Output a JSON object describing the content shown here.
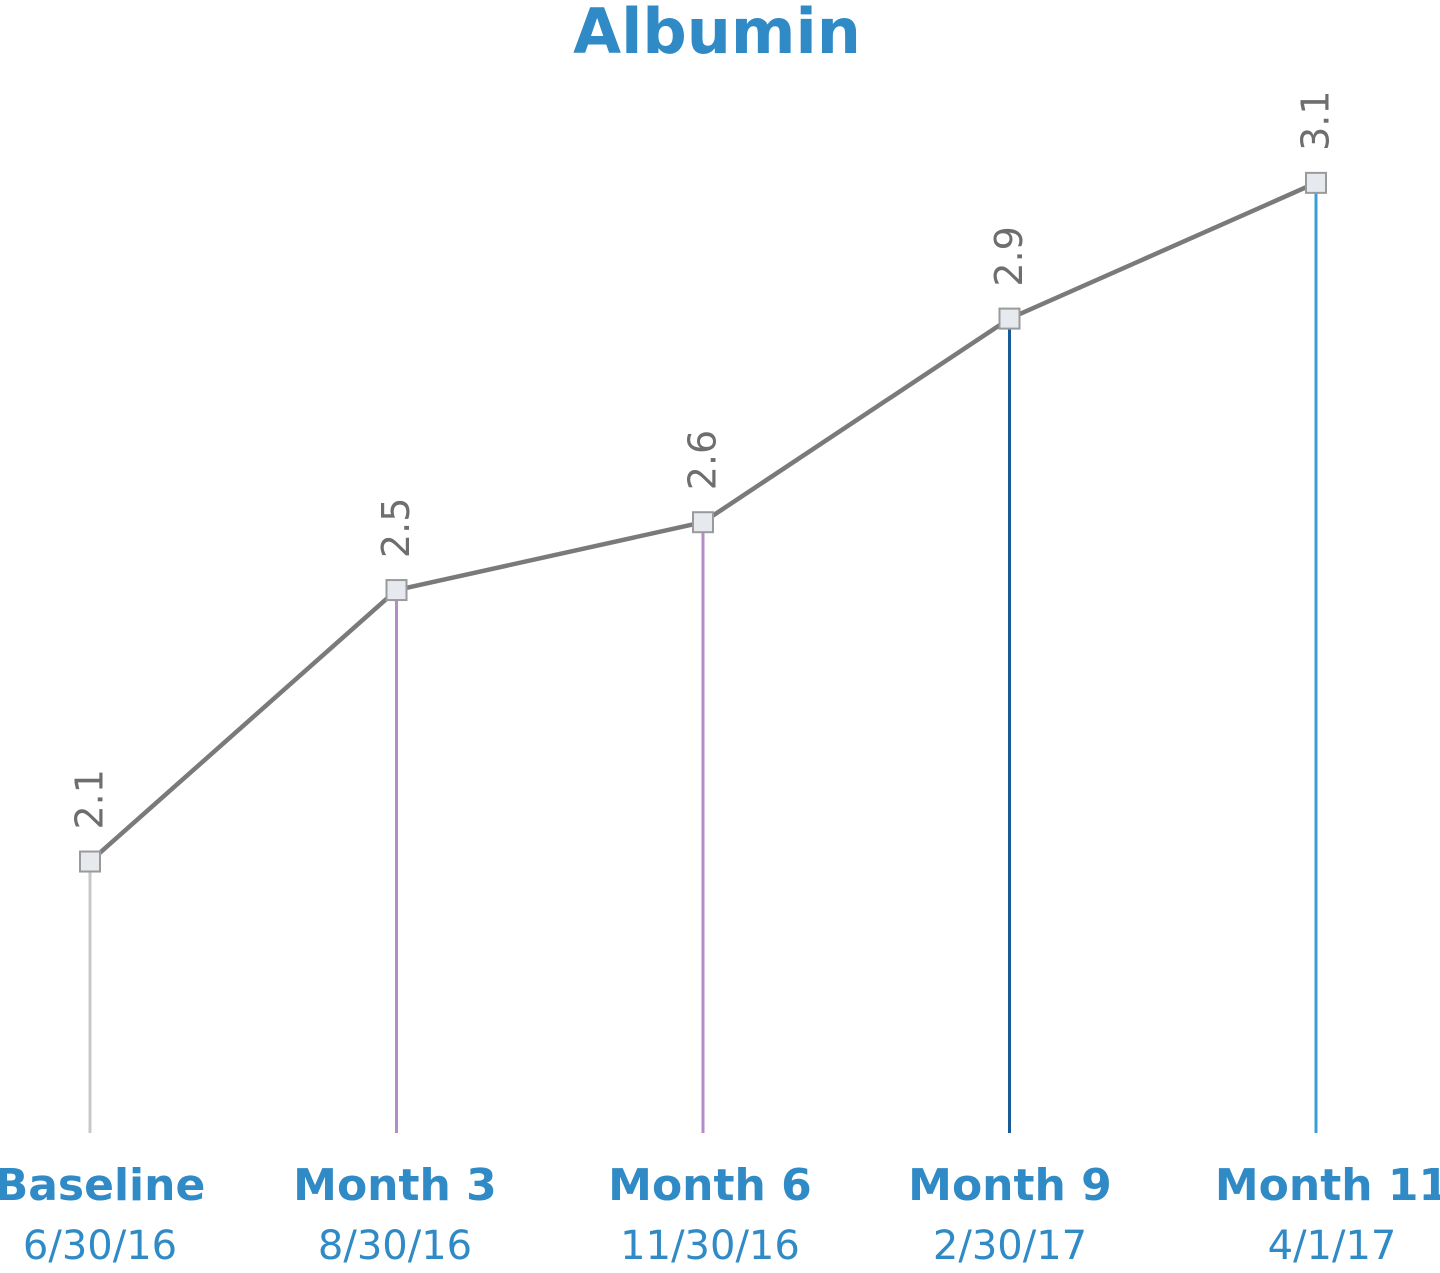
{
  "chart_data": {
    "type": "line",
    "title": "Albumin",
    "categories": [
      "Baseline",
      "Month 3",
      "Month 6",
      "Month 9",
      "Month 11"
    ],
    "dates": [
      "6/30/16",
      "8/30/16",
      "11/30/16",
      "2/30/17",
      "4/1/17"
    ],
    "values": [
      2.1,
      2.5,
      2.6,
      2.9,
      3.1
    ],
    "color": "#7a7a7a",
    "drop_line_colors": [
      "#c8c8c8",
      "#b48cc8",
      "#b48cc8",
      "#1a5a96",
      "#3a9fd8"
    ],
    "ylim": [
      1.7,
      3.2
    ]
  }
}
